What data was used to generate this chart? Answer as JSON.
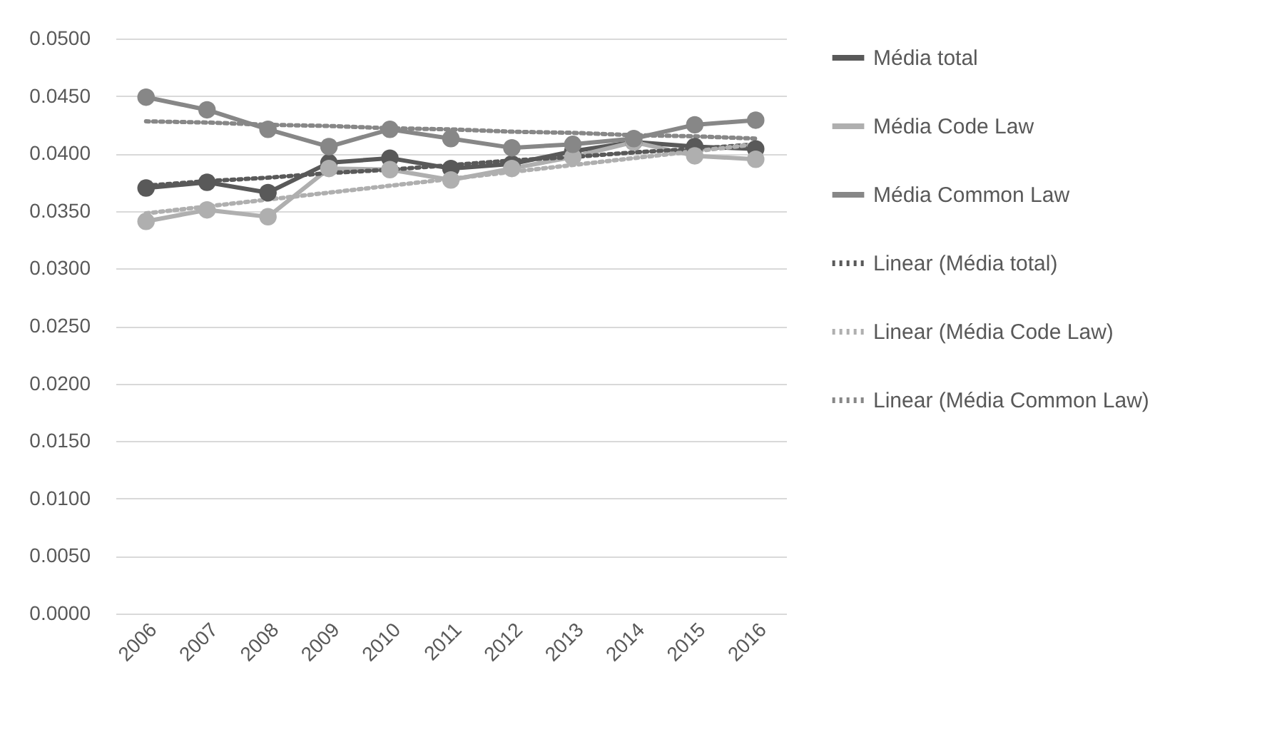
{
  "chart_data": {
    "type": "line",
    "categories": [
      "2006",
      "2007",
      "2008",
      "2009",
      "2010",
      "2011",
      "2012",
      "2013",
      "2014",
      "2015",
      "2016"
    ],
    "series": [
      {
        "name": "Média total",
        "color": "#595959",
        "marker": "circle",
        "line_style": "solid",
        "values": [
          0.037,
          0.0375,
          0.0366,
          0.0392,
          0.0396,
          0.0387,
          0.0391,
          0.0402,
          0.041,
          0.0406,
          0.0404
        ]
      },
      {
        "name": "Média Code Law",
        "color": "#afafaf",
        "marker": "circle",
        "line_style": "solid",
        "values": [
          0.0341,
          0.0351,
          0.0345,
          0.0387,
          0.0386,
          0.0377,
          0.0387,
          0.0397,
          0.041,
          0.0398,
          0.0395
        ]
      },
      {
        "name": "Média Common Law",
        "color": "#878787",
        "marker": "circle",
        "line_style": "solid",
        "values": [
          0.0449,
          0.0438,
          0.0421,
          0.0406,
          0.0421,
          0.0413,
          0.0405,
          0.0408,
          0.0413,
          0.0425,
          0.0429
        ]
      },
      {
        "name": "Linear (Média total)",
        "color": "#595959",
        "marker": "none",
        "line_style": "dotted",
        "values": [
          0.0372,
          0.0376,
          0.0379,
          0.0383,
          0.0386,
          0.039,
          0.0394,
          0.0397,
          0.0401,
          0.0404,
          0.0408
        ]
      },
      {
        "name": "Linear (Média Code Law)",
        "color": "#afafaf",
        "marker": "none",
        "line_style": "dotted",
        "values": [
          0.0348,
          0.0354,
          0.036,
          0.0366,
          0.0372,
          0.0378,
          0.0384,
          0.039,
          0.0396,
          0.0402,
          0.0408
        ]
      },
      {
        "name": "Linear (Média Common Law)",
        "color": "#878787",
        "marker": "none",
        "line_style": "dotted",
        "values": [
          0.0428,
          0.0427,
          0.0425,
          0.0424,
          0.0422,
          0.0421,
          0.0419,
          0.0418,
          0.0416,
          0.0415,
          0.0413
        ]
      }
    ],
    "ylim": [
      0,
      0.05
    ],
    "yticks": [
      {
        "value": 0,
        "label": "0.0000"
      },
      {
        "value": 0.005,
        "label": "0.0050"
      },
      {
        "value": 0.01,
        "label": "0.0100"
      },
      {
        "value": 0.015,
        "label": "0.0150"
      },
      {
        "value": 0.02,
        "label": "0.0200"
      },
      {
        "value": 0.025,
        "label": "0.0250"
      },
      {
        "value": 0.03,
        "label": "0.0300"
      },
      {
        "value": 0.035,
        "label": "0.0350"
      },
      {
        "value": 0.04,
        "label": "0.0400"
      },
      {
        "value": 0.045,
        "label": "0.0450"
      },
      {
        "value": 0.05,
        "label": "0.0500"
      }
    ],
    "grid": "y",
    "legend": "right"
  }
}
